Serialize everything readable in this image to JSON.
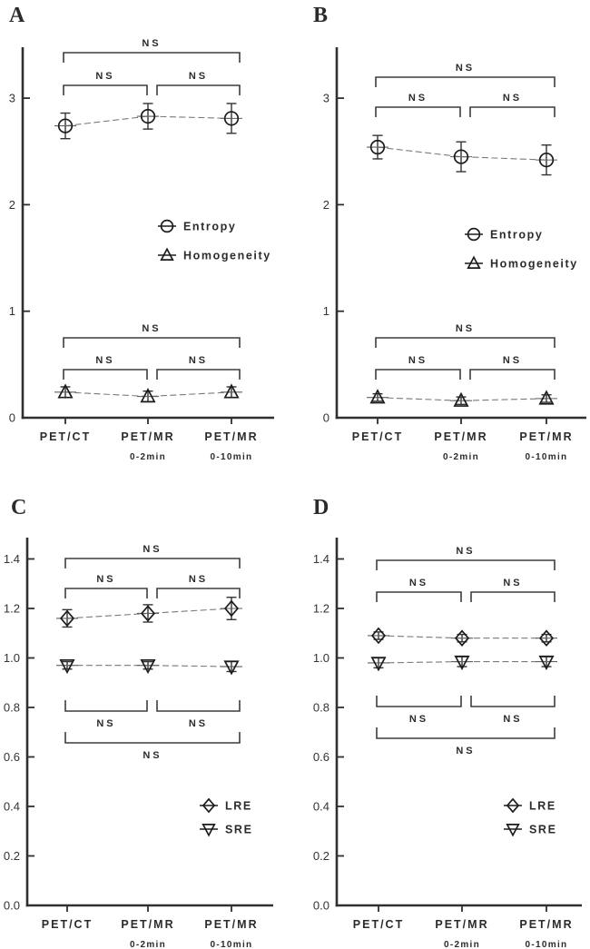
{
  "figure": {
    "title": "",
    "colors": {
      "background": "#ffffff",
      "text": "#2b2b2b",
      "axis": "#2f2f2f",
      "series_line": "#7a7a7a",
      "marker_stroke": "#1c1c1c",
      "error_bar": "#333333",
      "bracket": "#3d3d3d"
    }
  },
  "chart_data": [
    {
      "type": "line",
      "panel_label": "A",
      "categories": [
        "PET/CT",
        "PET/MR 0-2min",
        "PET/MR 0-10min"
      ],
      "x_ticks": [
        {
          "line1": "PET/CT",
          "line2": ""
        },
        {
          "line1": "PET/MR",
          "line2": "0-2min"
        },
        {
          "line1": "PET/MR",
          "line2": "0-10min"
        }
      ],
      "y_ticks": [
        {
          "value": 0,
          "label": "0"
        },
        {
          "value": 1,
          "label": "1"
        },
        {
          "value": 2,
          "label": "2"
        },
        {
          "value": 3,
          "label": "3"
        }
      ],
      "ylim": [
        0,
        3.48
      ],
      "grid": false,
      "legend_position": "center-right",
      "series": [
        {
          "name": "Entropy",
          "marker": "circle",
          "values": [
            2.74,
            2.83,
            2.81
          ],
          "errors": [
            0.12,
            0.12,
            0.14
          ]
        },
        {
          "name": "Homogeneity",
          "marker": "triangle-up",
          "values": [
            0.24,
            0.2,
            0.24
          ],
          "errors": [
            0.05,
            0.05,
            0.05
          ]
        }
      ],
      "significance_groups": [
        {
          "attached_series": "Entropy",
          "position": "above",
          "outer": "NS",
          "inner_left": "NS",
          "inner_right": "NS"
        },
        {
          "attached_series": "Homogeneity",
          "position": "above",
          "outer": "NS",
          "inner_left": "NS",
          "inner_right": "NS"
        }
      ]
    },
    {
      "type": "line",
      "panel_label": "B",
      "categories": [
        "PET/CT",
        "PET/MR 0-2min",
        "PET/MR 0-10min"
      ],
      "x_ticks": [
        {
          "line1": "PET/CT",
          "line2": ""
        },
        {
          "line1": "PET/MR",
          "line2": "0-2min"
        },
        {
          "line1": "PET/MR",
          "line2": "0-10min"
        }
      ],
      "y_ticks": [
        {
          "value": 0,
          "label": "0"
        },
        {
          "value": 1,
          "label": "1"
        },
        {
          "value": 2,
          "label": "2"
        },
        {
          "value": 3,
          "label": "3"
        }
      ],
      "ylim": [
        0,
        3.48
      ],
      "grid": false,
      "legend_position": "center-right",
      "series": [
        {
          "name": "Entropy",
          "marker": "circle",
          "values": [
            2.54,
            2.45,
            2.42
          ],
          "errors": [
            0.11,
            0.14,
            0.14
          ]
        },
        {
          "name": "Homogeneity",
          "marker": "triangle-up",
          "values": [
            0.19,
            0.16,
            0.18
          ],
          "errors": [
            0.035,
            0.035,
            0.035
          ]
        }
      ],
      "significance_groups": [
        {
          "attached_series": "Entropy",
          "position": "above",
          "outer": "NS",
          "inner_left": "NS",
          "inner_right": "NS"
        },
        {
          "attached_series": "Homogeneity",
          "position": "above",
          "outer": "NS",
          "inner_left": "NS",
          "inner_right": "NS"
        }
      ]
    },
    {
      "type": "line",
      "panel_label": "C",
      "categories": [
        "PET/CT",
        "PET/MR 0-2min",
        "PET/MR 0-10min"
      ],
      "x_ticks": [
        {
          "line1": "PET/CT",
          "line2": ""
        },
        {
          "line1": "PET/MR",
          "line2": "0-2min"
        },
        {
          "line1": "PET/MR",
          "line2": "0-10min"
        }
      ],
      "y_ticks": [
        {
          "value": 0.0,
          "label": "0.0"
        },
        {
          "value": 0.2,
          "label": "0.2"
        },
        {
          "value": 0.4,
          "label": "0.4"
        },
        {
          "value": 0.6,
          "label": "0.6"
        },
        {
          "value": 0.8,
          "label": "0.8"
        },
        {
          "value": 1.0,
          "label": "1.0"
        },
        {
          "value": 1.2,
          "label": "1.2"
        },
        {
          "value": 1.4,
          "label": "1.4"
        }
      ],
      "ylim": [
        0,
        1.49
      ],
      "grid": false,
      "legend_position": "lower-right",
      "series": [
        {
          "name": "LRE",
          "marker": "diamond",
          "values": [
            1.16,
            1.18,
            1.2
          ],
          "errors": [
            0.035,
            0.035,
            0.045
          ]
        },
        {
          "name": "SRE",
          "marker": "triangle-down",
          "values": [
            0.97,
            0.97,
            0.965
          ],
          "errors": [
            0.015,
            0.015,
            0.02
          ]
        }
      ],
      "significance_groups": [
        {
          "attached_series": "LRE",
          "position": "above",
          "outer": "NS",
          "inner_left": "NS",
          "inner_right": "NS"
        },
        {
          "attached_series": "SRE",
          "position": "below",
          "outer": "NS",
          "inner_left": "NS",
          "inner_right": "NS"
        }
      ]
    },
    {
      "type": "line",
      "panel_label": "D",
      "categories": [
        "PET/CT",
        "PET/MR 0-2min",
        "PET/MR 0-10min"
      ],
      "x_ticks": [
        {
          "line1": "PET/CT",
          "line2": ""
        },
        {
          "line1": "PET/MR",
          "line2": "0-2min"
        },
        {
          "line1": "PET/MR",
          "line2": "0-10min"
        }
      ],
      "y_ticks": [
        {
          "value": 0.0,
          "label": "0.0"
        },
        {
          "value": 0.2,
          "label": "0.2"
        },
        {
          "value": 0.4,
          "label": "0.4"
        },
        {
          "value": 0.6,
          "label": "0.6"
        },
        {
          "value": 0.8,
          "label": "0.8"
        },
        {
          "value": 1.0,
          "label": "1.0"
        },
        {
          "value": 1.2,
          "label": "1.2"
        },
        {
          "value": 1.4,
          "label": "1.4"
        }
      ],
      "ylim": [
        0,
        1.49
      ],
      "grid": false,
      "legend_position": "lower-right",
      "series": [
        {
          "name": "LRE",
          "marker": "diamond",
          "values": [
            1.09,
            1.08,
            1.08
          ],
          "errors": [
            0.015,
            0.015,
            0.015
          ]
        },
        {
          "name": "SRE",
          "marker": "triangle-down",
          "values": [
            0.98,
            0.985,
            0.985
          ],
          "errors": [
            0.02,
            0.02,
            0.02
          ]
        }
      ],
      "significance_groups": [
        {
          "attached_series": "LRE",
          "position": "above",
          "outer": "NS",
          "inner_left": "NS",
          "inner_right": "NS"
        },
        {
          "attached_series": "SRE",
          "position": "below",
          "outer": "NS",
          "inner_left": "NS",
          "inner_right": "NS"
        }
      ]
    }
  ]
}
